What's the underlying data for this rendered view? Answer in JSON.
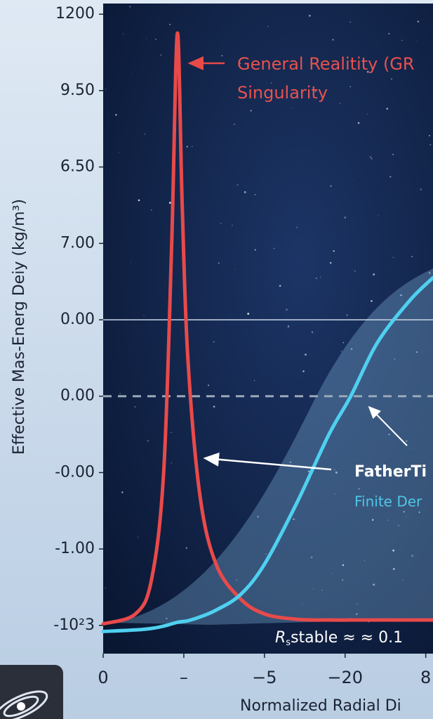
{
  "chart_data": {
    "type": "line",
    "ylabel": "Effective Mas-Energ Deiy (kg/m³)",
    "xlabel": "Normalized Radial Di",
    "annotations": [
      "General Realitity (GR",
      "Singularity",
      "FatherTi",
      "Finite Der",
      "R",
      "s",
      "stable ≈ ≈ 0.1"
    ],
    "x": [
      0,
      0.4,
      0.6,
      0.75,
      0.85,
      0.92,
      0.98,
      1.05,
      1.2,
      1.4,
      1.7,
      2.0,
      2.4,
      2.8,
      3.07,
      3.4,
      3.8,
      4.09
    ],
    "series": [
      {
        "color": "#e84a4a",
        "values": [
          0.02,
          0.15,
          0.6,
          2.0,
          5.0,
          7.75,
          5.5,
          3.5,
          1.7,
          0.8,
          0.35,
          0.15,
          0.08,
          0.07,
          0.07,
          0.07,
          0.07,
          0.07
        ]
      },
      {
        "color": "#4fd0f0",
        "values": [
          -0.08,
          -0.06,
          -0.04,
          -0.01,
          0.02,
          0.04,
          0.05,
          0.06,
          0.11,
          0.2,
          0.4,
          0.8,
          1.6,
          2.5,
          3.0,
          3.7,
          4.25,
          4.55
        ]
      }
    ],
    "xlim": [
      0,
      4.09
    ],
    "ylim": [
      -0.37,
      8.14
    ],
    "xticks": [
      0,
      {
        "value": 1,
        "label": "–"
      },
      {
        "value": 2,
        "label": "−5"
      },
      {
        "value": 3,
        "label": "−20"
      },
      {
        "value": 4,
        "label": "8"
      }
    ],
    "yticks": [
      {
        "value": 0,
        "label": "-10²3"
      },
      {
        "value": 1,
        "label": "-1.00"
      },
      {
        "value": 2,
        "label": "-0.00"
      },
      {
        "value": 3,
        "label": "0.00"
      },
      {
        "value": 4,
        "label": "0.00"
      },
      {
        "value": 5,
        "label": "7.00"
      },
      {
        "value": 6,
        "label": "6.50"
      },
      {
        "value": 7,
        "label": "9.50"
      },
      {
        "value": 8,
        "label": "1200"
      }
    ]
  }
}
